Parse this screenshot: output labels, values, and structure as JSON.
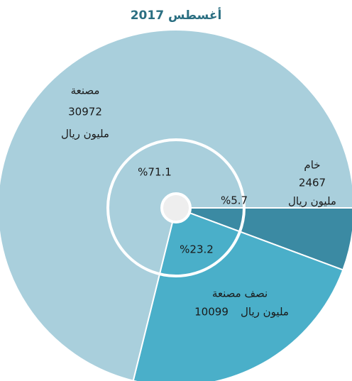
{
  "chart_data": {
    "type": "pie",
    "title": "أغسطس 2017",
    "categories": [
      "خام",
      "نصف مصنعة",
      "مصنعة"
    ],
    "values": [
      2467,
      10099,
      30972
    ],
    "colors": [
      "#3b8aa3",
      "#4aafc9",
      "#a9cfdc"
    ],
    "percent_values": [
      5.7,
      23.2,
      71.1
    ],
    "percent_labels": [
      "%5.7",
      "%23.2",
      "%71.1"
    ],
    "unit": "مليون ريال"
  }
}
